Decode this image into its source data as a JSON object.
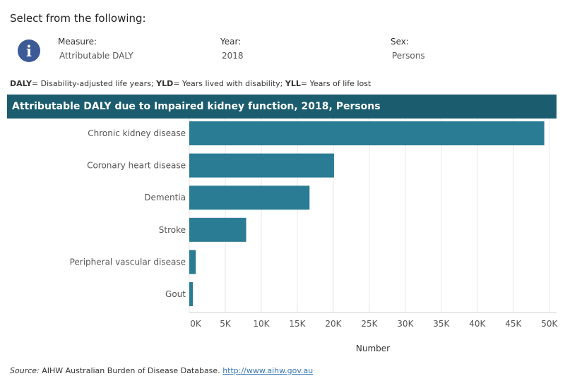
{
  "header": {
    "select_title": "Select from the following:"
  },
  "filters": {
    "measure": {
      "label": "Measure:",
      "value": "Attributable DALY"
    },
    "year": {
      "label": "Year:",
      "value": "2018"
    },
    "sex": {
      "label": "Sex:",
      "value": "Persons"
    }
  },
  "legend_note": {
    "daly_abbr": "DALY",
    "daly_text": "= Disability-adjusted life years; ",
    "yld_abbr": "YLD",
    "yld_text": "= Years lived with disability; ",
    "yll_abbr": "YLL",
    "yll_text": "= Years of life lost"
  },
  "source": {
    "label": "Source:",
    "text": " AIHW Australian Burden of Disease Database. ",
    "link": "http://www.aihw.gov.au"
  },
  "colors": {
    "bar": "#2a7b94",
    "header_bg": "#1b5c6e",
    "info_icon": "#3c5a96"
  },
  "icons": {
    "info": "info-icon"
  },
  "chart_data": {
    "type": "bar",
    "orientation": "horizontal",
    "title": "Attributable DALY due to Impaired kidney function, 2018, Persons",
    "categories": [
      "Chronic kidney disease",
      "Coronary heart disease",
      "Dementia",
      "Stroke",
      "Peripheral vascular disease",
      "Gout"
    ],
    "values": [
      49300,
      20100,
      16700,
      7900,
      900,
      500
    ],
    "xlabel": "Number",
    "ylabel": "",
    "xlim": [
      0,
      51000
    ],
    "xticks": [
      0,
      5000,
      10000,
      15000,
      20000,
      25000,
      30000,
      35000,
      40000,
      45000,
      50000
    ],
    "xtick_labels": [
      "0K",
      "5K",
      "10K",
      "15K",
      "20K",
      "25K",
      "30K",
      "35K",
      "40K",
      "45K",
      "50K"
    ],
    "grid": true,
    "legend": "none"
  }
}
